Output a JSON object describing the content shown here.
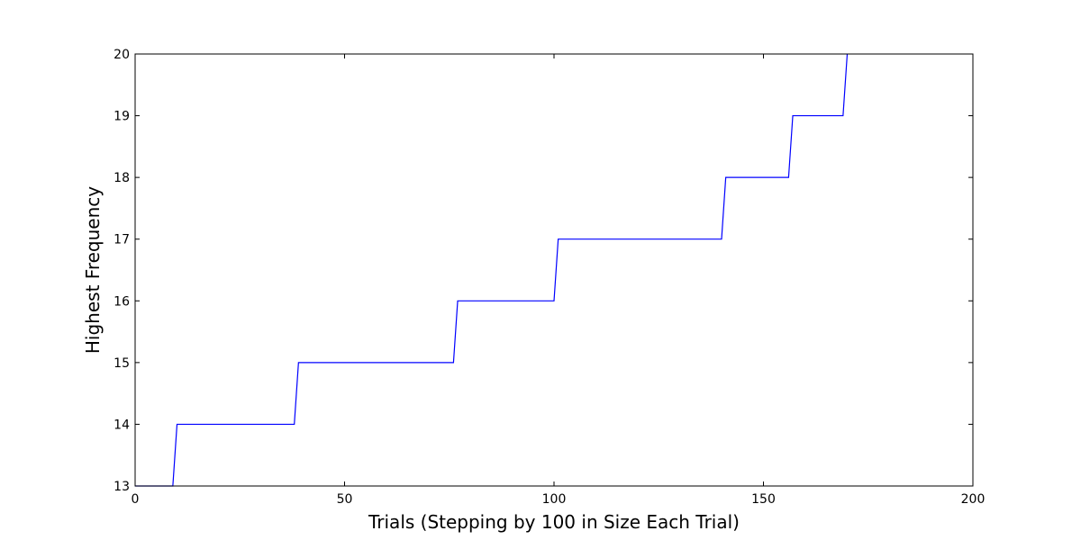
{
  "chart_data": {
    "type": "line",
    "title": "",
    "xlabel": "Trials (Stepping by 100 in Size Each Trial)",
    "ylabel": "Highest Frequency",
    "xlim": [
      0,
      200
    ],
    "ylim": [
      13,
      20
    ],
    "xticks": [
      "0",
      "50",
      "100",
      "150",
      "200"
    ],
    "yticks": [
      "13",
      "14",
      "15",
      "16",
      "17",
      "18",
      "19",
      "20"
    ],
    "grid": false,
    "line_color": "#0000ff",
    "series": [
      {
        "x": [
          0,
          9,
          10,
          38,
          39,
          76,
          77,
          100,
          101,
          140,
          141,
          156,
          157,
          169,
          170
        ],
        "values": [
          13,
          13,
          14,
          14,
          15,
          15,
          16,
          16,
          17,
          17,
          18,
          18,
          19,
          19,
          20
        ]
      }
    ]
  }
}
